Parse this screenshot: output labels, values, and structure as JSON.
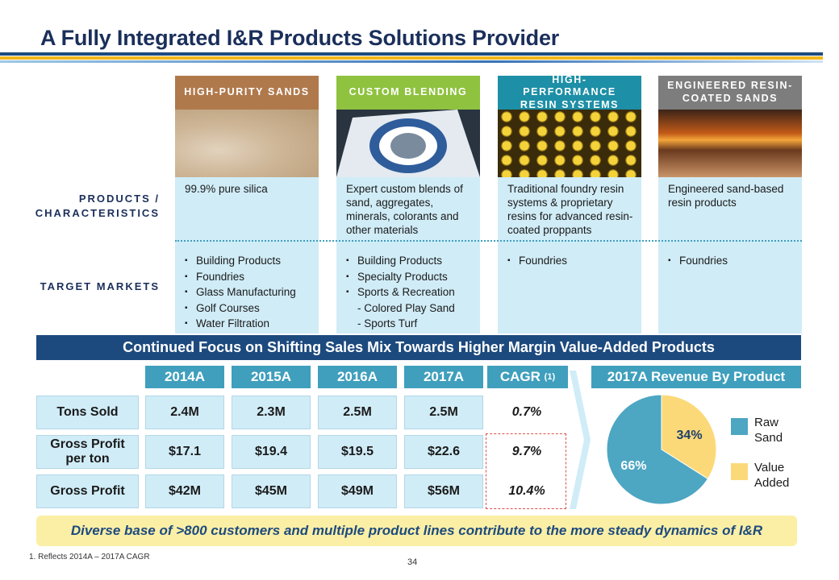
{
  "title": "A Fully Integrated I&R Products Solutions Provider",
  "categories": [
    {
      "header": "HIGH-PURITY SANDS",
      "header_color": "#b0794c",
      "image": "sand-image",
      "characteristic": "99.9% pure silica",
      "markets": [
        "Building Products",
        "Foundries",
        "Glass Manufacturing",
        "Golf Courses",
        "Water Filtration"
      ]
    },
    {
      "header": "CUSTOM BLENDING",
      "header_color": "#8fc23f",
      "image": "blend-bag-image",
      "characteristic": "Expert custom blends of sand, aggregates, minerals, colorants and other materials",
      "markets": [
        "Building Products",
        "Specialty Products",
        "Sports & Recreation",
        "- Colored Play Sand",
        "- Sports Turf"
      ]
    },
    {
      "header": "HIGH-PERFORMANCE RESIN SYSTEMS",
      "header_color": "#1d8fa6",
      "image": "resin-spheres-image",
      "characteristic": "Traditional foundry resin systems & proprietary resins for advanced resin-coated proppants",
      "markets": [
        "Foundries"
      ]
    },
    {
      "header": "ENGINEERED RESIN-COATED SANDS",
      "header_color": "#7d7d7d",
      "image": "foundry-casting-image",
      "characteristic": "Engineered sand-based resin products",
      "markets": [
        "Foundries"
      ]
    }
  ],
  "row_labels": {
    "products": "PRODUCTS / CHARACTERISTICS",
    "markets": "TARGET MARKETS"
  },
  "focus_banner": "Continued Focus on Shifting Sales Mix Towards Higher Margin Value-Added Products",
  "table": {
    "years": [
      "2014A",
      "2015A",
      "2016A",
      "2017A"
    ],
    "cagr_label": "CAGR",
    "cagr_note": "(1)",
    "rows": [
      {
        "label": "Tons Sold",
        "values": [
          "2.4M",
          "2.3M",
          "2.5M",
          "2.5M"
        ],
        "cagr": "0.7%"
      },
      {
        "label": "Gross Profit per ton",
        "values": [
          "$17.1",
          "$19.4",
          "$19.5",
          "$22.6"
        ],
        "cagr": "9.7%"
      },
      {
        "label": "Gross Profit",
        "values": [
          "$42M",
          "$45M",
          "$49M",
          "$56M"
        ],
        "cagr": "10.4%"
      }
    ]
  },
  "chart_data": {
    "type": "pie",
    "title": "2017A Revenue By Product",
    "slices": [
      {
        "label": "Value Added",
        "value": 34,
        "display": "34%",
        "color": "#fcd978"
      },
      {
        "label": "Raw Sand",
        "value": 66,
        "display": "66%",
        "color": "#4da6c2"
      }
    ],
    "legend": [
      {
        "label": "Raw Sand",
        "color": "#4da6c2"
      },
      {
        "label": "Value Added",
        "color": "#fcd978"
      }
    ]
  },
  "bottom_banner": "Diverse base of >800 customers and multiple product lines contribute to the more steady dynamics of I&R",
  "footnote": "1.  Reflects 2014A – 2017A CAGR",
  "page_number": "34",
  "colors": {
    "navy": "#1d4a7e",
    "teal": "#3f9fbd",
    "light_blue": "#d0ecf7",
    "gold": "#f3b71b",
    "cagr_red": "#d9534f"
  }
}
